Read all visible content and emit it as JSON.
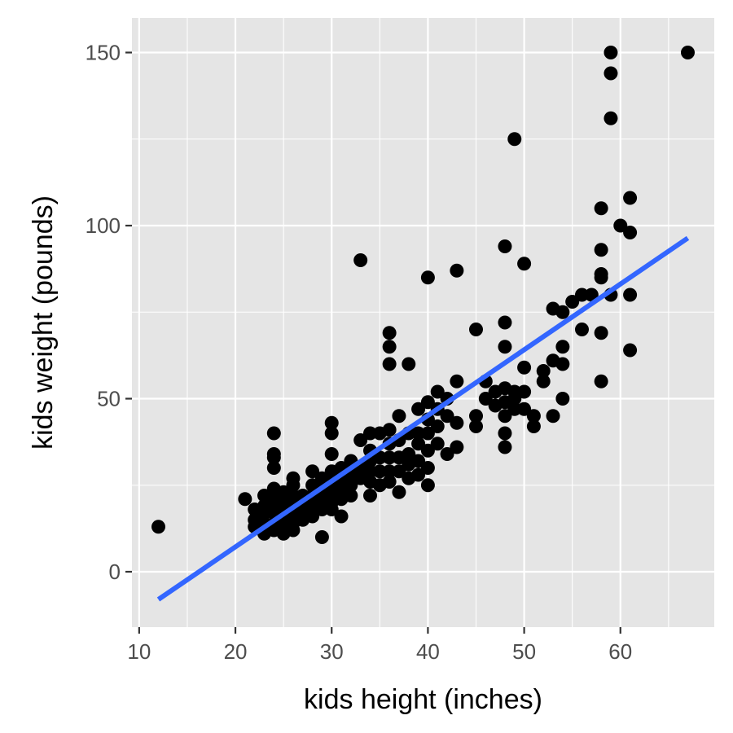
{
  "chart_data": {
    "type": "scatter",
    "title": "",
    "xlabel": "kids height (inches)",
    "ylabel": "kids weight (pounds)",
    "xlim": [
      9.25,
      69.75
    ],
    "ylim": [
      -16,
      160
    ],
    "x_ticks": [
      10,
      20,
      30,
      40,
      50,
      60
    ],
    "y_ticks": [
      0,
      50,
      100,
      150
    ],
    "grid": true,
    "legend": "none",
    "colors": {
      "panel_bg": "#e5e5e5",
      "grid": "#ffffff",
      "points": "#000000",
      "trend_line": "#3366ff"
    },
    "points": [
      [
        12,
        13
      ],
      [
        21,
        21
      ],
      [
        22,
        18
      ],
      [
        22,
        15
      ],
      [
        22,
        13
      ],
      [
        23,
        22
      ],
      [
        23,
        17
      ],
      [
        23,
        14
      ],
      [
        23,
        11
      ],
      [
        23,
        19
      ],
      [
        24,
        40
      ],
      [
        24,
        34
      ],
      [
        24,
        33
      ],
      [
        24,
        30
      ],
      [
        24,
        24
      ],
      [
        24,
        20
      ],
      [
        24,
        17
      ],
      [
        24,
        14
      ],
      [
        24,
        12
      ],
      [
        24,
        22
      ],
      [
        25,
        11
      ],
      [
        25,
        15
      ],
      [
        25,
        18
      ],
      [
        25,
        20
      ],
      [
        25,
        23
      ],
      [
        25,
        13
      ],
      [
        26,
        27
      ],
      [
        26,
        25
      ],
      [
        26,
        22
      ],
      [
        26,
        19
      ],
      [
        26,
        16
      ],
      [
        26,
        14
      ],
      [
        26,
        12
      ],
      [
        27,
        20
      ],
      [
        27,
        17
      ],
      [
        27,
        15
      ],
      [
        27,
        22
      ],
      [
        28,
        29
      ],
      [
        28,
        25
      ],
      [
        28,
        22
      ],
      [
        28,
        19
      ],
      [
        28,
        16
      ],
      [
        29,
        10
      ],
      [
        29,
        18
      ],
      [
        29,
        20
      ],
      [
        29,
        22
      ],
      [
        29,
        24
      ],
      [
        29,
        27
      ],
      [
        30,
        43
      ],
      [
        30,
        40
      ],
      [
        30,
        34
      ],
      [
        30,
        29
      ],
      [
        30,
        27
      ],
      [
        30,
        25
      ],
      [
        30,
        22
      ],
      [
        30,
        20
      ],
      [
        30,
        18
      ],
      [
        31,
        30
      ],
      [
        31,
        27
      ],
      [
        31,
        24
      ],
      [
        31,
        21
      ],
      [
        31,
        16
      ],
      [
        32,
        32
      ],
      [
        32,
        28
      ],
      [
        32,
        25
      ],
      [
        32,
        22
      ],
      [
        33,
        38
      ],
      [
        33,
        30
      ],
      [
        33,
        27
      ],
      [
        33,
        90
      ],
      [
        34,
        40
      ],
      [
        34,
        35
      ],
      [
        34,
        32
      ],
      [
        34,
        29
      ],
      [
        34,
        26
      ],
      [
        34,
        22
      ],
      [
        35,
        40
      ],
      [
        35,
        33
      ],
      [
        35,
        29
      ],
      [
        35,
        25
      ],
      [
        36,
        69
      ],
      [
        36,
        65
      ],
      [
        36,
        60
      ],
      [
        36,
        41
      ],
      [
        36,
        37
      ],
      [
        36,
        33
      ],
      [
        36,
        29
      ],
      [
        36,
        26
      ],
      [
        37,
        45
      ],
      [
        37,
        38
      ],
      [
        37,
        33
      ],
      [
        37,
        29
      ],
      [
        37,
        23
      ],
      [
        38,
        60
      ],
      [
        38,
        40
      ],
      [
        38,
        34
      ],
      [
        38,
        31
      ],
      [
        38,
        27
      ],
      [
        39,
        47
      ],
      [
        39,
        40
      ],
      [
        39,
        37
      ],
      [
        39,
        32
      ],
      [
        39,
        28
      ],
      [
        40,
        85
      ],
      [
        40,
        49
      ],
      [
        40,
        44
      ],
      [
        40,
        40
      ],
      [
        40,
        35
      ],
      [
        40,
        30
      ],
      [
        40,
        25
      ],
      [
        41,
        52
      ],
      [
        41,
        47
      ],
      [
        41,
        42
      ],
      [
        41,
        37
      ],
      [
        42,
        50
      ],
      [
        42,
        45
      ],
      [
        42,
        34
      ],
      [
        43,
        87
      ],
      [
        43,
        55
      ],
      [
        43,
        43
      ],
      [
        43,
        36
      ],
      [
        45,
        70
      ],
      [
        45,
        45
      ],
      [
        45,
        42
      ],
      [
        46,
        55
      ],
      [
        46,
        50
      ],
      [
        47,
        52
      ],
      [
        47,
        48
      ],
      [
        48,
        94
      ],
      [
        48,
        72
      ],
      [
        48,
        65
      ],
      [
        48,
        53
      ],
      [
        48,
        49
      ],
      [
        48,
        45
      ],
      [
        48,
        40
      ],
      [
        48,
        36
      ],
      [
        49,
        125
      ],
      [
        49,
        52
      ],
      [
        49,
        50
      ],
      [
        49,
        47
      ],
      [
        50,
        89
      ],
      [
        50,
        59
      ],
      [
        50,
        52
      ],
      [
        50,
        47
      ],
      [
        51,
        45
      ],
      [
        51,
        42
      ],
      [
        52,
        58
      ],
      [
        52,
        55
      ],
      [
        53,
        76
      ],
      [
        53,
        61
      ],
      [
        53,
        45
      ],
      [
        54,
        75
      ],
      [
        54,
        65
      ],
      [
        54,
        60
      ],
      [
        54,
        50
      ],
      [
        55,
        78
      ],
      [
        56,
        80
      ],
      [
        56,
        70
      ],
      [
        57,
        80
      ],
      [
        58,
        105
      ],
      [
        58,
        93
      ],
      [
        58,
        86
      ],
      [
        58,
        85
      ],
      [
        58,
        69
      ],
      [
        58,
        55
      ],
      [
        59,
        150
      ],
      [
        59,
        144
      ],
      [
        59,
        131
      ],
      [
        59,
        80
      ],
      [
        60,
        100
      ],
      [
        61,
        108
      ],
      [
        61,
        98
      ],
      [
        61,
        80
      ],
      [
        61,
        64
      ],
      [
        67,
        150
      ]
    ],
    "trend_line": {
      "from": [
        12,
        -8
      ],
      "to": [
        67,
        96.4
      ]
    }
  }
}
